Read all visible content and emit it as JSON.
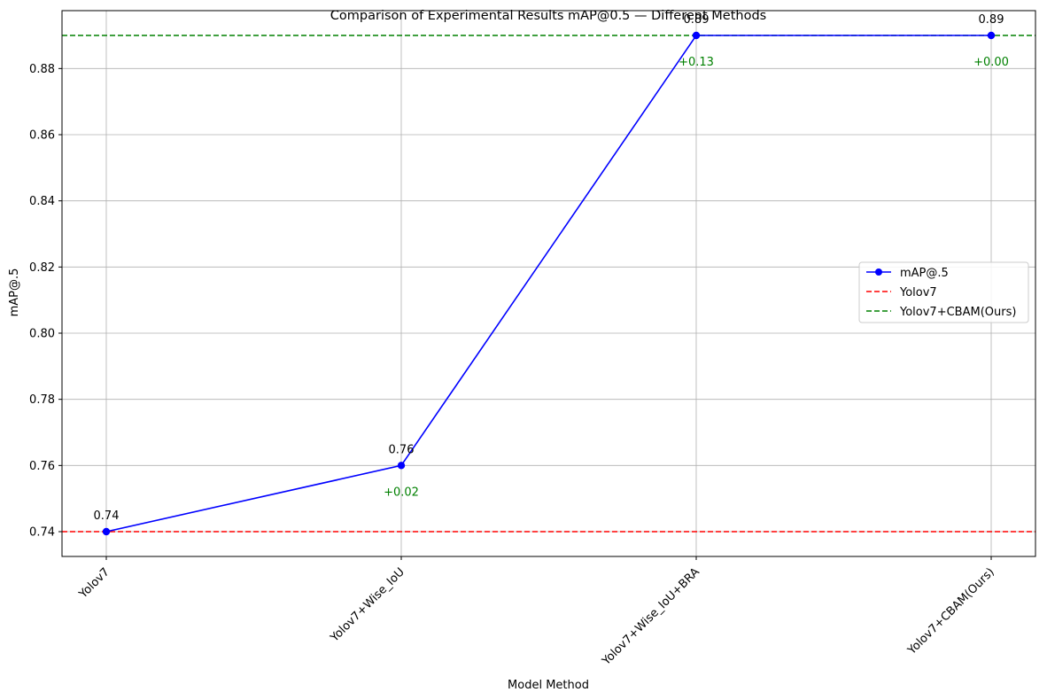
{
  "chart_data": {
    "type": "line",
    "title": "Comparison of Experimental Results mAP@0.5 — Different Methods",
    "xlabel": "Model Method",
    "ylabel": "mAP@.5",
    "categories": [
      "Yolov7",
      "Yolov7+Wise_IoU",
      "Yolov7+Wise_IoU+BRA",
      "Yolov7+CBAM(Ours)"
    ],
    "series": [
      {
        "name": "mAP@.5",
        "values": [
          0.74,
          0.76,
          0.89,
          0.89
        ],
        "color": "#0000ff"
      }
    ],
    "value_labels": [
      "0.74",
      "0.76",
      "0.89",
      "0.89"
    ],
    "delta_labels": [
      "",
      "+0.02",
      "+0.13",
      "+0.00"
    ],
    "reference_lines": [
      {
        "name": "Yolov7",
        "value": 0.74,
        "color": "#ff0000",
        "style": "dashed"
      },
      {
        "name": "Yolov7+CBAM(Ours)",
        "value": 0.89,
        "color": "#008000",
        "style": "dashed"
      }
    ],
    "ylim": [
      0.7325,
      0.8975
    ],
    "yticks": [
      0.74,
      0.76,
      0.78,
      0.8,
      0.82,
      0.84,
      0.86,
      0.88
    ],
    "ytick_labels": [
      "0.74",
      "0.76",
      "0.78",
      "0.80",
      "0.82",
      "0.84",
      "0.86",
      "0.88"
    ],
    "grid": true,
    "legend_position": "center-right",
    "delta_color": "#008000"
  }
}
